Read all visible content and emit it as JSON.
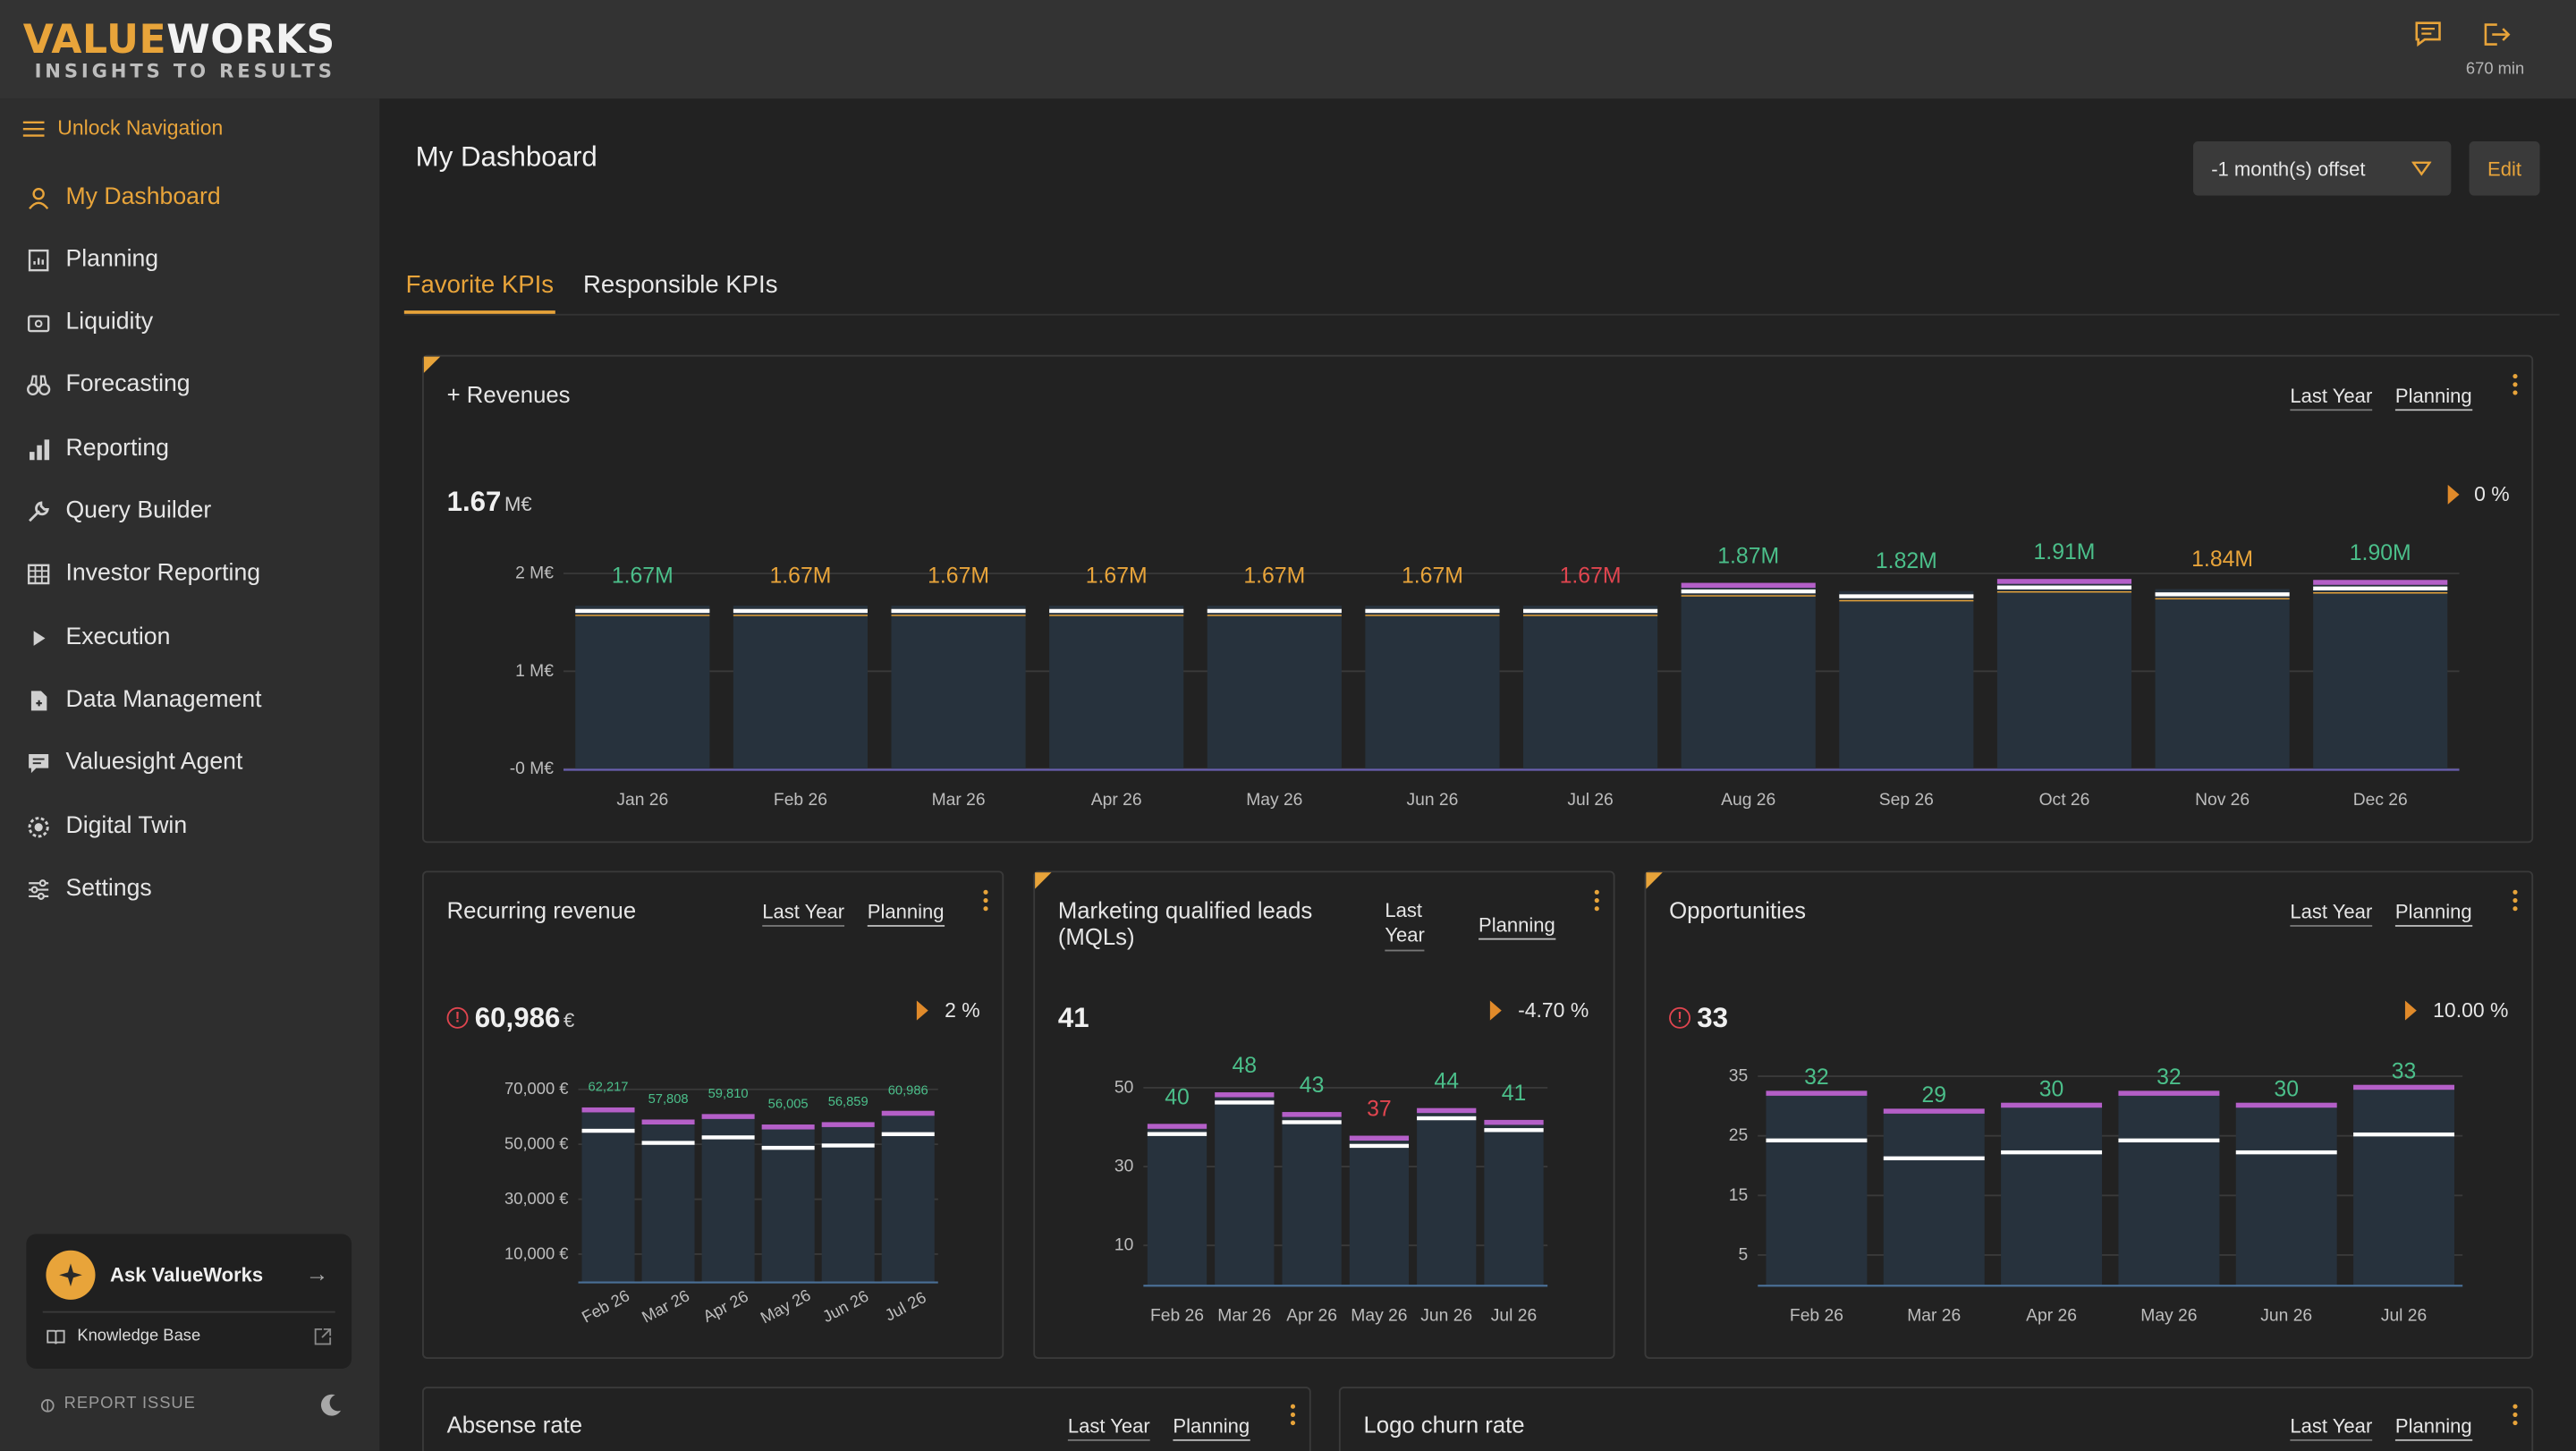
{
  "app": {
    "logo_part1": "VALUE",
    "logo_part2": "WORKS",
    "logo_tagline": "INSIGHTS TO RESULTS",
    "session_time": "670 min"
  },
  "sidebar": {
    "unlock_label": "Unlock Navigation",
    "items": [
      {
        "label": "My Dashboard",
        "icon": "user-icon",
        "active": true
      },
      {
        "label": "Planning",
        "icon": "planning-icon"
      },
      {
        "label": "Liquidity",
        "icon": "wallet-icon"
      },
      {
        "label": "Forecasting",
        "icon": "binoculars-icon"
      },
      {
        "label": "Reporting",
        "icon": "bar-chart-icon"
      },
      {
        "label": "Query Builder",
        "icon": "wrench-icon"
      },
      {
        "label": "Investor Reporting",
        "icon": "table-icon"
      },
      {
        "label": "Execution",
        "icon": "play-icon"
      },
      {
        "label": "Data Management",
        "icon": "file-icon"
      },
      {
        "label": "Valuesight Agent",
        "icon": "chat-icon"
      },
      {
        "label": "Digital Twin",
        "icon": "cog-icon"
      },
      {
        "label": "Settings",
        "icon": "sliders-icon"
      }
    ],
    "ask_label": "Ask ValueWorks",
    "knowledge_base": "Knowledge Base",
    "report_issue": "REPORT ISSUE"
  },
  "main": {
    "title": "My Dashboard",
    "offset_select": "-1 month(s) offset",
    "edit_label": "Edit",
    "tabs": [
      {
        "label": "Favorite KPIs",
        "active": true
      },
      {
        "label": "Responsible KPIs",
        "active": false
      }
    ],
    "link_last_year": "Last Year",
    "link_planning": "Planning"
  },
  "colors": {
    "accent": "#e8a43a",
    "green": "#4bbf8a",
    "orange": "#e8a43a",
    "red": "#e0454f",
    "purple": "#b45fc8",
    "bar": "#27323d"
  },
  "kpis": {
    "revenues": {
      "title": "+ Revenues",
      "value": "1.67",
      "unit": "M€",
      "change": "0 %"
    },
    "recurring": {
      "title": "Recurring revenue",
      "value": "60,986",
      "unit": "€",
      "change": "2 %"
    },
    "mql": {
      "title_line1": "Marketing qualified leads",
      "title_line2": "(MQLs)",
      "value": "41",
      "change": "-4.70 %",
      "last_year_line1": "Last",
      "last_year_line2": "Year"
    },
    "opps": {
      "title": "Opportunities",
      "value": "33",
      "change": "10.00 %"
    },
    "absense": {
      "title": "Absense rate"
    },
    "churn": {
      "title": "Logo churn rate"
    }
  },
  "chart_data": [
    {
      "type": "bar",
      "title": "+ Revenues",
      "categories": [
        "Jan 26",
        "Feb 26",
        "Mar 26",
        "Apr 26",
        "May 26",
        "Jun 26",
        "Jul 26",
        "Aug 26",
        "Sep 26",
        "Oct 26",
        "Nov 26",
        "Dec 26"
      ],
      "values": [
        1.67,
        1.67,
        1.67,
        1.67,
        1.67,
        1.67,
        1.67,
        1.87,
        1.82,
        1.91,
        1.84,
        1.9
      ],
      "data_labels": [
        "1.67M",
        "1.67M",
        "1.67M",
        "1.67M",
        "1.67M",
        "1.67M",
        "1.67M",
        "1.87M",
        "1.82M",
        "1.91M",
        "1.84M",
        "1.90M"
      ],
      "label_colors": [
        "green",
        "orange",
        "orange",
        "orange",
        "orange",
        "orange",
        "red",
        "green",
        "green",
        "green",
        "orange",
        "green"
      ],
      "yticks": [
        "-0 M€",
        "1 M€",
        "2 M€"
      ],
      "ylim": [
        0,
        2
      ]
    },
    {
      "type": "bar",
      "title": "Recurring revenue",
      "categories": [
        "Feb 26",
        "Mar 26",
        "Apr 26",
        "May 26",
        "Jun 26",
        "Jul 26"
      ],
      "values": [
        62217,
        57808,
        59810,
        56005,
        56859,
        60986
      ],
      "data_labels": [
        "62,217",
        "57,808",
        "59,810",
        "56,005",
        "56,859",
        "60,986"
      ],
      "yticks": [
        "10,000 €",
        "30,000 €",
        "50,000 €",
        "70,000 €"
      ],
      "ylim": [
        0,
        70000
      ]
    },
    {
      "type": "bar",
      "title": "Marketing qualified leads (MQLs)",
      "categories": [
        "Feb 26",
        "Mar 26",
        "Apr 26",
        "May 26",
        "Jun 26",
        "Jul 26"
      ],
      "values": [
        40,
        48,
        43,
        37,
        44,
        41
      ],
      "data_labels": [
        "40",
        "48",
        "43",
        "37",
        "44",
        "41"
      ],
      "label_colors": [
        "green",
        "green",
        "green",
        "red",
        "green",
        "green"
      ],
      "yticks": [
        "10",
        "30",
        "50"
      ],
      "ylim": [
        0,
        50
      ]
    },
    {
      "type": "bar",
      "title": "Opportunities",
      "categories": [
        "Feb 26",
        "Mar 26",
        "Apr 26",
        "May 26",
        "Jun 26",
        "Jul 26"
      ],
      "values": [
        32,
        29,
        30,
        32,
        30,
        33
      ],
      "data_labels": [
        "32",
        "29",
        "30",
        "32",
        "30",
        "33"
      ],
      "yticks": [
        "5",
        "15",
        "25",
        "35"
      ],
      "ylim": [
        0,
        35
      ]
    }
  ]
}
